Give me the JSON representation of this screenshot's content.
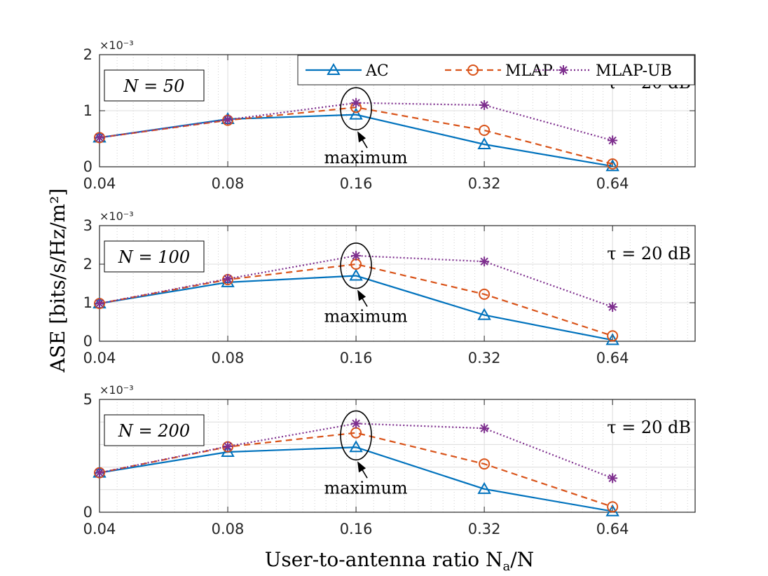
{
  "chart_data": {
    "type": "line",
    "ylabel": "ASE [bits/s/Hz/m²]",
    "xlabel": "User-to-antenna ratio N",
    "xlabel_sub": "a",
    "xlabel_tail": "/N",
    "x_scale": "log2",
    "x": [
      0.04,
      0.08,
      0.16,
      0.32,
      0.64
    ],
    "xtick_labels": [
      "0.04",
      "0.08",
      "0.16",
      "0.32",
      "0.64"
    ],
    "xlim": [
      0.04,
      1.0
    ],
    "grid": true,
    "legend": {
      "placement": "top-right of first panel",
      "entries": [
        "AC",
        "MLAP",
        "MLAP-UB"
      ]
    },
    "series_style": [
      {
        "name": "AC",
        "color": "#0072BD",
        "dash": "solid",
        "marker": "triangle"
      },
      {
        "name": "MLAP",
        "color": "#D95319",
        "dash": "dashed",
        "marker": "circle"
      },
      {
        "name": "MLAP-UB",
        "color": "#7E2F8E",
        "dash": "dotted",
        "marker": "asterisk"
      }
    ],
    "annotation": "maximum",
    "tau_label": "τ = 20 dB",
    "exponent_label": "×10⁻³",
    "panels": [
      {
        "n_label": "N = 50",
        "ylim": [
          0,
          2
        ],
        "yticks": [
          "0",
          "1",
          "2"
        ],
        "series": [
          {
            "name": "AC",
            "values": [
              0.52,
              0.85,
              0.93,
              0.4,
              0.01
            ]
          },
          {
            "name": "MLAP",
            "values": [
              0.52,
              0.83,
              1.06,
              0.65,
              0.05
            ]
          },
          {
            "name": "MLAP-UB",
            "values": [
              0.52,
              0.84,
              1.14,
              1.1,
              0.47
            ]
          }
        ]
      },
      {
        "n_label": "N = 100",
        "ylim": [
          0,
          3
        ],
        "yticks": [
          "0",
          "1",
          "2",
          "3"
        ],
        "series": [
          {
            "name": "AC",
            "values": [
              0.98,
              1.53,
              1.7,
              0.68,
              0.03
            ]
          },
          {
            "name": "MLAP",
            "values": [
              0.98,
              1.6,
              2.0,
              1.22,
              0.14
            ]
          },
          {
            "name": "MLAP-UB",
            "values": [
              0.98,
              1.62,
              2.22,
              2.07,
              0.89
            ]
          }
        ]
      },
      {
        "n_label": "N = 200",
        "ylim": [
          0,
          5
        ],
        "yticks": [
          "0",
          "5"
        ],
        "series": [
          {
            "name": "AC",
            "values": [
              1.75,
              2.67,
              2.88,
              1.03,
              0.04
            ]
          },
          {
            "name": "MLAP",
            "values": [
              1.75,
              2.9,
              3.52,
              2.14,
              0.24
            ]
          },
          {
            "name": "MLAP-UB",
            "values": [
              1.75,
              2.92,
              3.93,
              3.72,
              1.51
            ]
          }
        ]
      }
    ]
  }
}
